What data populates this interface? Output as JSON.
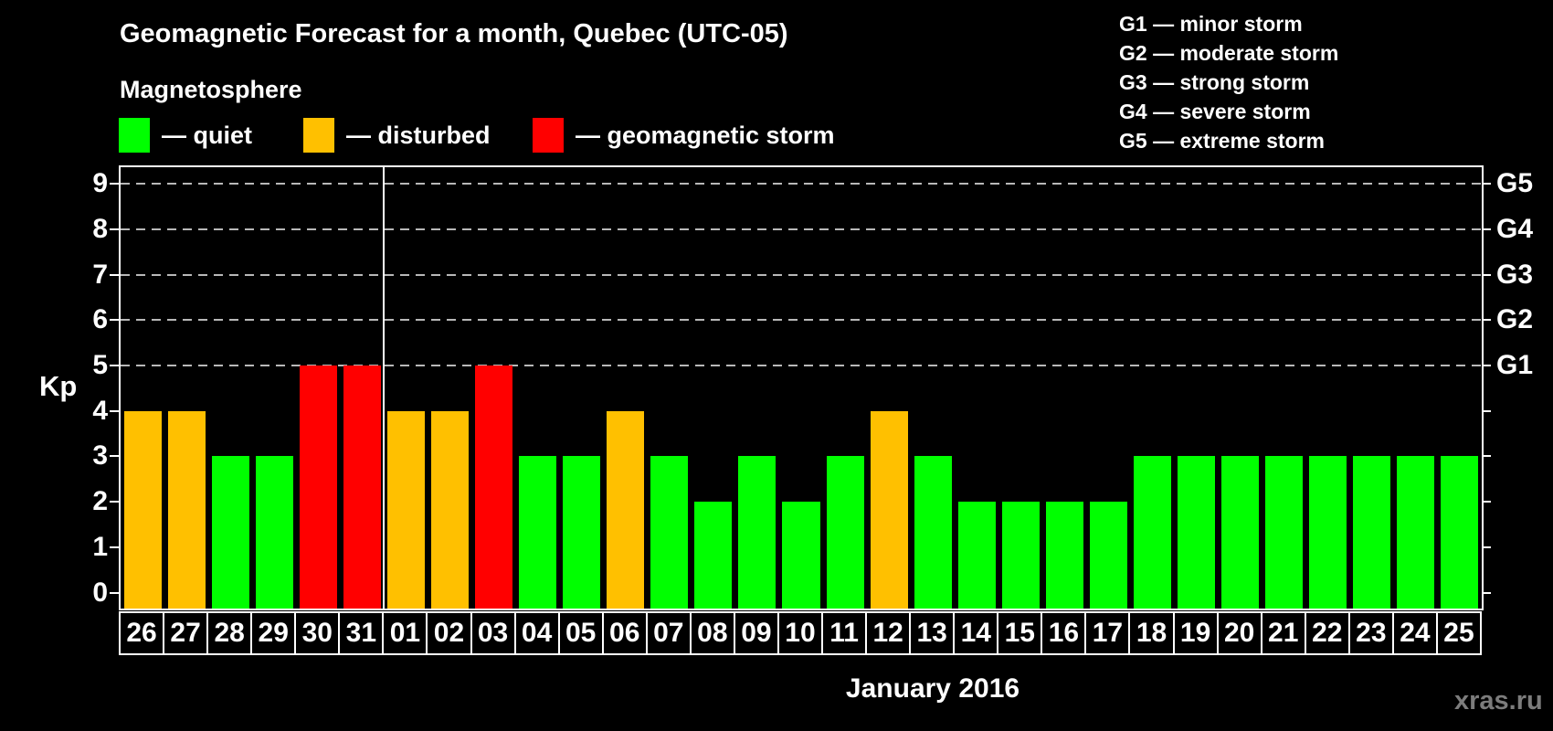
{
  "title": "Geomagnetic Forecast for a month, Quebec (UTC-05)",
  "subtitle": "Magnetosphere",
  "legend": {
    "items": [
      {
        "name": "quiet",
        "label": "— quiet",
        "color": "#00ff00"
      },
      {
        "name": "disturbed",
        "label": "— disturbed",
        "color": "#ffc000"
      },
      {
        "name": "storm",
        "label": "— geomagnetic storm",
        "color": "#ff0000"
      }
    ]
  },
  "g_legend": {
    "lines": [
      "G1 — minor storm",
      "G2 — moderate storm",
      "G3 — strong storm",
      "G4 — severe storm",
      "G5 — extreme storm"
    ]
  },
  "watermark": "xras.ru",
  "colors": {
    "background": "#000000",
    "text": "#ffffff",
    "axis": "#ffffff",
    "gridline": "#b8b8b8",
    "watermark": "#7c7c7c"
  },
  "chart_data": {
    "type": "bar",
    "title": "Geomagnetic Forecast for a month, Quebec (UTC-05)",
    "xlabel": "January 2016",
    "ylabel": "Kp",
    "ylim": [
      0,
      9
    ],
    "yticks": [
      0,
      1,
      2,
      3,
      4,
      5,
      6,
      7,
      8,
      9
    ],
    "gridlines_at_kp": [
      5,
      6,
      7,
      8,
      9
    ],
    "grid": "dashed horizontal at storm levels only",
    "legend_position": "top",
    "right_axis_labels": [
      {
        "label": "G1",
        "kp": 5
      },
      {
        "label": "G2",
        "kp": 6
      },
      {
        "label": "G3",
        "kp": 7
      },
      {
        "label": "G4",
        "kp": 8
      },
      {
        "label": "G5",
        "kp": 9
      }
    ],
    "month_separator_after_index": 5,
    "status_colors": {
      "quiet": "#00ff00",
      "disturbed": "#ffc000",
      "storm": "#ff0000"
    },
    "bars": [
      {
        "day": "26",
        "kp": 4,
        "status": "disturbed"
      },
      {
        "day": "27",
        "kp": 4,
        "status": "disturbed"
      },
      {
        "day": "28",
        "kp": 3,
        "status": "quiet"
      },
      {
        "day": "29",
        "kp": 3,
        "status": "quiet"
      },
      {
        "day": "30",
        "kp": 5,
        "status": "storm"
      },
      {
        "day": "31",
        "kp": 5,
        "status": "storm"
      },
      {
        "day": "01",
        "kp": 4,
        "status": "disturbed"
      },
      {
        "day": "02",
        "kp": 4,
        "status": "disturbed"
      },
      {
        "day": "03",
        "kp": 5,
        "status": "storm"
      },
      {
        "day": "04",
        "kp": 3,
        "status": "quiet"
      },
      {
        "day": "05",
        "kp": 3,
        "status": "quiet"
      },
      {
        "day": "06",
        "kp": 4,
        "status": "disturbed"
      },
      {
        "day": "07",
        "kp": 3,
        "status": "quiet"
      },
      {
        "day": "08",
        "kp": 2,
        "status": "quiet"
      },
      {
        "day": "09",
        "kp": 3,
        "status": "quiet"
      },
      {
        "day": "10",
        "kp": 2,
        "status": "quiet"
      },
      {
        "day": "11",
        "kp": 3,
        "status": "quiet"
      },
      {
        "day": "12",
        "kp": 4,
        "status": "disturbed"
      },
      {
        "day": "13",
        "kp": 3,
        "status": "quiet"
      },
      {
        "day": "14",
        "kp": 2,
        "status": "quiet"
      },
      {
        "day": "15",
        "kp": 2,
        "status": "quiet"
      },
      {
        "day": "16",
        "kp": 2,
        "status": "quiet"
      },
      {
        "day": "17",
        "kp": 2,
        "status": "quiet"
      },
      {
        "day": "18",
        "kp": 3,
        "status": "quiet"
      },
      {
        "day": "19",
        "kp": 3,
        "status": "quiet"
      },
      {
        "day": "20",
        "kp": 3,
        "status": "quiet"
      },
      {
        "day": "21",
        "kp": 3,
        "status": "quiet"
      },
      {
        "day": "22",
        "kp": 3,
        "status": "quiet"
      },
      {
        "day": "23",
        "kp": 3,
        "status": "quiet"
      },
      {
        "day": "24",
        "kp": 3,
        "status": "quiet"
      },
      {
        "day": "25",
        "kp": 3,
        "status": "quiet"
      }
    ]
  }
}
